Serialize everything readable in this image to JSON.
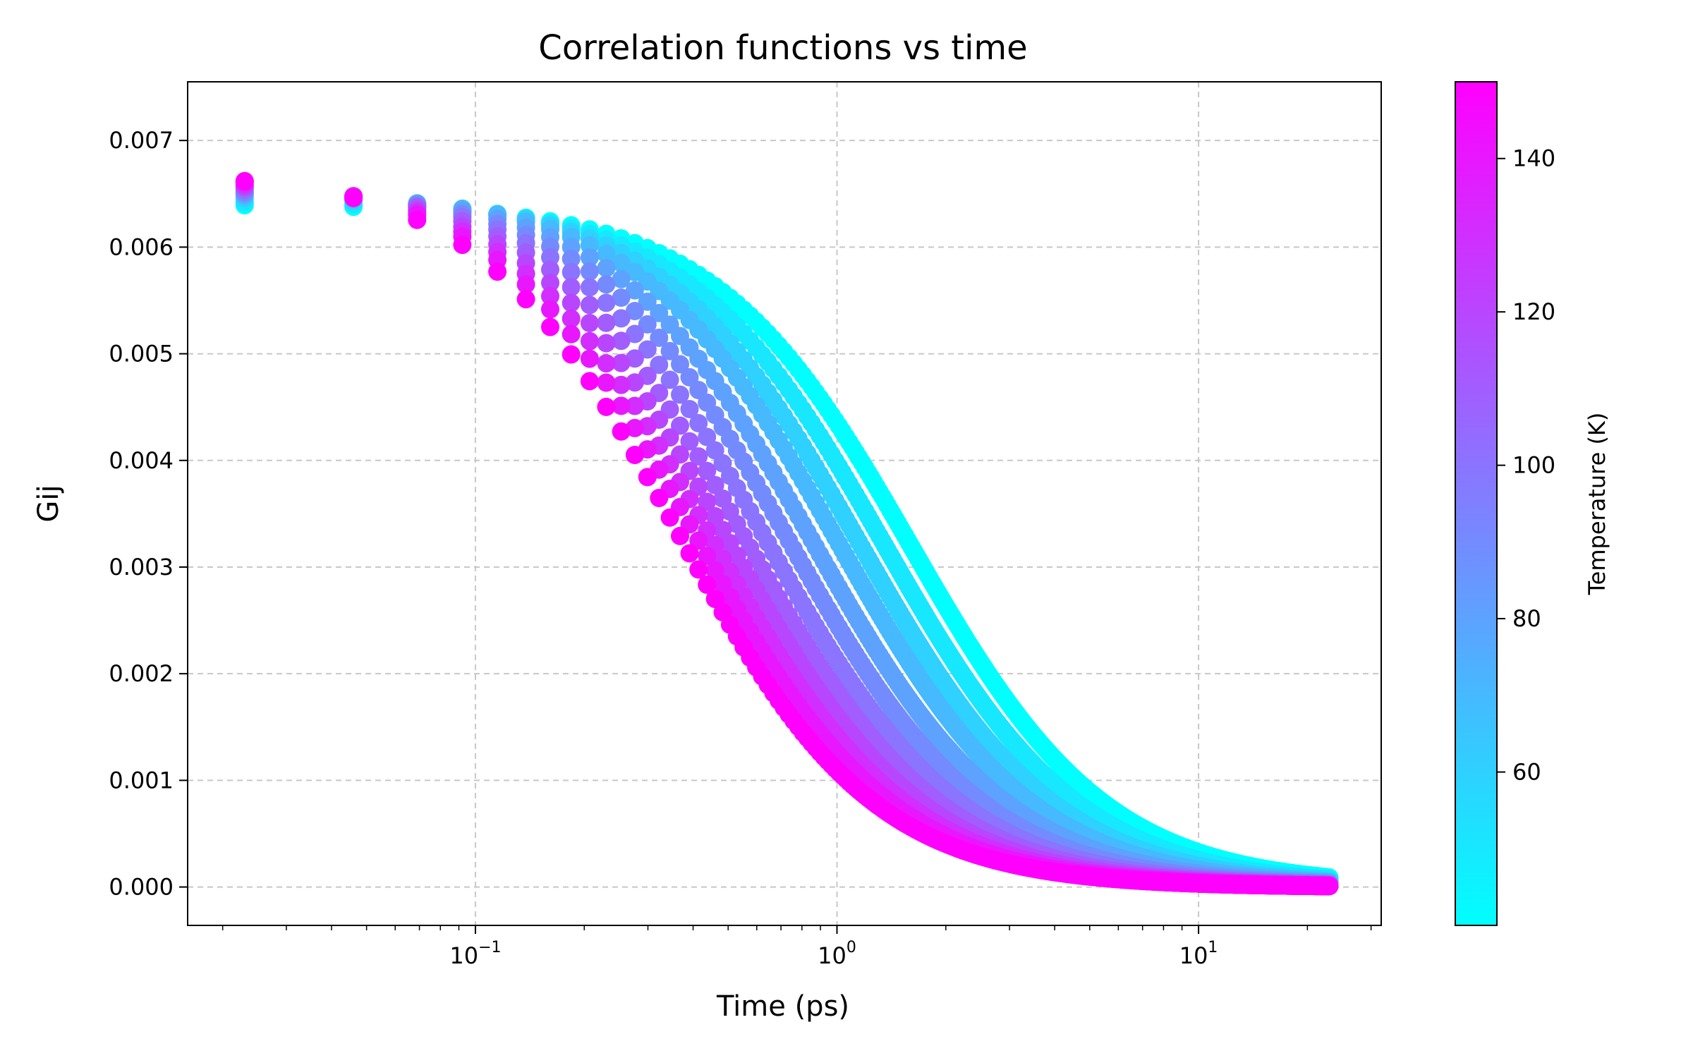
{
  "chart_data": {
    "type": "scatter",
    "title": "Correlation functions vs time",
    "xlabel": "Time (ps)",
    "ylabel": "Gij",
    "xscale": "log",
    "xlim": [
      0.016,
      32
    ],
    "ylim": [
      -0.00036,
      0.00755
    ],
    "x_major_ticks": [
      {
        "value": 0.1,
        "base": "10",
        "exp": "−1"
      },
      {
        "value": 1,
        "base": "10",
        "exp": "0"
      },
      {
        "value": 10,
        "base": "10",
        "exp": "1"
      }
    ],
    "y_ticks": [
      0.0,
      0.001,
      0.002,
      0.003,
      0.004,
      0.005,
      0.006,
      0.007
    ],
    "y_tick_labels": [
      "0.000",
      "0.001",
      "0.002",
      "0.003",
      "0.004",
      "0.005",
      "0.006",
      "0.007"
    ],
    "grid": true,
    "time_step_ps": 0.023,
    "n_points": 1000,
    "series_temperatures_K": [
      40,
      50,
      60,
      70,
      80,
      90,
      100,
      110,
      120,
      130,
      140,
      150
    ],
    "series_initial_values": [
      0.0064,
      0.00643,
      0.00647,
      0.0065,
      0.00652,
      0.00654,
      0.00657,
      0.0066,
      0.00662,
      0.00665,
      0.00668,
      0.0067
    ],
    "series_decay_time_ps": [
      1.6,
      1.35,
      1.15,
      1.0,
      0.85,
      0.73,
      0.63,
      0.55,
      0.49,
      0.44,
      0.4,
      0.36
    ],
    "colormap": {
      "low": "#00ffff",
      "high": "#ff00ff"
    },
    "colorbar": {
      "label": "Temperature (K)",
      "range": [
        40,
        150
      ],
      "ticks": [
        60,
        80,
        100,
        120,
        140
      ],
      "tick_labels": [
        "60",
        "80",
        "100",
        "120",
        "140"
      ]
    }
  }
}
